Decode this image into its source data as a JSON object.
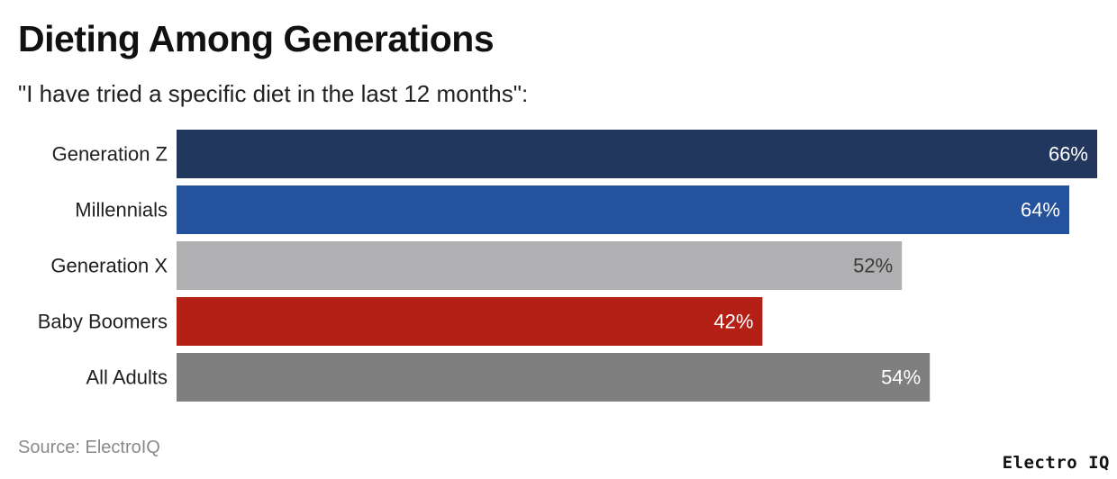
{
  "header": {
    "title": "Dieting Among Generations",
    "subtitle": "\"I have tried a specific diet in the last 12 months\":"
  },
  "footer": {
    "source": "Source: ElectroIQ",
    "brand": "Electro IQ"
  },
  "chart_data": {
    "type": "bar",
    "orientation": "horizontal",
    "title": "Dieting Among Generations",
    "subtitle": "\"I have tried a specific diet in the last 12 months\":",
    "categories": [
      "Generation Z",
      "Millennials",
      "Generation X",
      "Baby Boomers",
      "All Adults"
    ],
    "values": [
      66,
      64,
      52,
      42,
      54
    ],
    "value_labels": [
      "66%",
      "64%",
      "52%",
      "42%",
      "54%"
    ],
    "unit": "%",
    "colors": [
      "#22375e",
      "#24529d",
      "#b0b0b2",
      "#b41f16",
      "#7f7f80"
    ],
    "label_colors": [
      "#ffffff",
      "#ffffff",
      "#3a3a3a",
      "#ffffff",
      "#ffffff"
    ],
    "xlim": [
      0,
      66
    ],
    "grid": false,
    "legend": "none"
  }
}
